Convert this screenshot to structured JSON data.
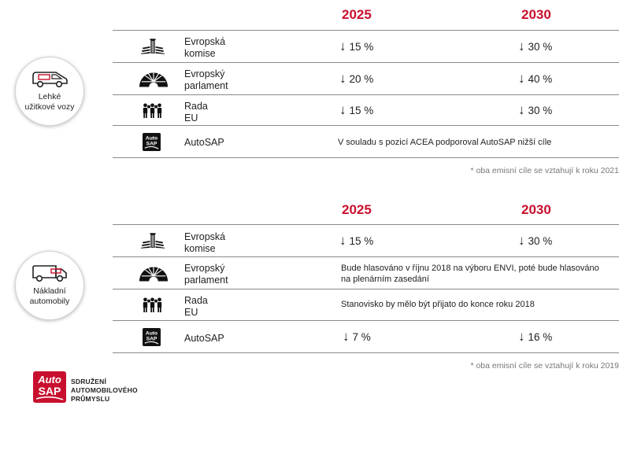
{
  "top": {
    "badge_line1": "Lehké",
    "badge_line2": "užitkové vozy",
    "year1": "2025",
    "year2": "2030",
    "rows": [
      {
        "line1": "Evropská",
        "line2": "komise",
        "icon": "building-pillars-icon",
        "v1": "15 %",
        "v2": "30 %"
      },
      {
        "line1": "Evropský",
        "line2": "parlament",
        "icon": "parliament-dome-icon",
        "v1": "20 %",
        "v2": "40 %"
      },
      {
        "line1": "Rada",
        "line2": "EU",
        "icon": "people-group-icon",
        "v1": "15 %",
        "v2": "30 %"
      },
      {
        "line1": "AutoSAP",
        "icon": "autosap-icon",
        "note": "V souladu s pozicí ACEA podporoval AutoSAP nižší cíle"
      }
    ],
    "footnote": "* oba emisní cíle se vztahují k roku 2021"
  },
  "bottom": {
    "badge_line1": "Nákladní",
    "badge_line2": "automobily",
    "year1": "2025",
    "year2": "2030",
    "rows": [
      {
        "line1": "Evropská",
        "line2": "komise",
        "icon": "building-pillars-icon",
        "v1": "15 %",
        "v2": "30 %"
      },
      {
        "line1": "Evropský",
        "line2": "parlament",
        "icon": "parliament-dome-icon",
        "note_line1": "Bude hlasováno v říjnu 2018 na výboru ENVI, poté bude hlasováno",
        "note_line2": "na plenárním zasedání"
      },
      {
        "line1": "Rada",
        "line2": "EU",
        "icon": "people-group-icon",
        "note": "Stanovisko by mělo být přijato do konce roku 2018"
      },
      {
        "line1": "AutoSAP",
        "icon": "autosap-icon",
        "v1": "7 %",
        "v2": "16 %"
      }
    ],
    "footnote": "* oba emisní cíle se vztahují k roku 2019"
  },
  "arrow": "↓",
  "logo": {
    "mark_line1": "Auto",
    "mark_line2": "SAP",
    "text_line1": "SDRUŽENÍ",
    "text_line2": "AUTOMOBILOVÉHO",
    "text_line3": "PRŮMYSLU"
  },
  "colors": {
    "accent": "#c8102e",
    "rule": "#8a8a8a",
    "icon": "#111111"
  }
}
